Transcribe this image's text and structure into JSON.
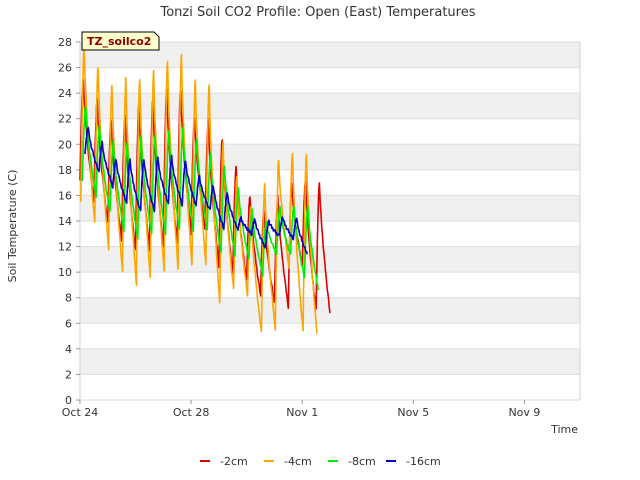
{
  "chart_data": {
    "type": "line",
    "title": "Tonzi Soil CO2 Profile: Open (East) Temperatures",
    "xlabel": "Time",
    "ylabel": "Soil Temperature (C)",
    "ylim": [
      0,
      28
    ],
    "yticks": [
      0,
      2,
      4,
      6,
      8,
      10,
      12,
      14,
      16,
      18,
      20,
      22,
      24,
      26,
      28
    ],
    "xlim": [
      0,
      18
    ],
    "xticks": [
      {
        "label": "Oct 24",
        "day": 0
      },
      {
        "label": "Oct 28",
        "day": 4
      },
      {
        "label": "Nov 1",
        "day": 8
      },
      {
        "label": "Nov 5",
        "day": 12
      },
      {
        "label": "Nov 9",
        "day": 16
      }
    ],
    "badge": "TZ_soilco2",
    "legend_position": "bottom",
    "day_time": [
      0,
      0.5,
      1,
      1.5,
      2,
      2.5,
      3,
      3.5,
      4,
      4.5,
      5,
      5.5,
      6,
      6.5,
      7,
      7.5,
      8,
      8.5,
      9,
      9.5,
      10,
      10.5,
      11,
      11.5,
      12,
      12.5,
      13,
      13.5,
      14,
      14.5,
      15,
      15.5,
      16,
      16.5,
      17,
      17.5
    ],
    "series": [
      {
        "name": "-2cm",
        "color": "#dd0000",
        "min": [
          17.3,
          15.5,
          13.8,
          12.5,
          11.7,
          11.8,
          12.0,
          12.2,
          13.0,
          13.3,
          10.5,
          9.9,
          9.3,
          8.2,
          7.6,
          7.3,
          10.5,
          7.0,
          6.8,
          8.9
        ],
        "max": [
          25.1,
          23.5,
          22.0,
          22.3,
          23.1,
          23.5,
          24.3,
          24.3,
          22.1,
          21.9,
          20.4,
          18.2,
          16.0,
          14.8,
          15.9,
          17.0,
          17.2,
          17.1
        ]
      },
      {
        "name": "-4cm",
        "color": "#ffa500",
        "min": [
          15.5,
          13.8,
          11.8,
          10.0,
          9.1,
          9.6,
          10.0,
          10.3,
          10.5,
          10.7,
          7.6,
          8.6,
          8.2,
          5.3,
          5.6,
          10.3,
          5.3,
          5.2,
          5.7,
          6.9
        ],
        "max": [
          27.8,
          26.1,
          24.6,
          25.1,
          25.1,
          25.7,
          26.6,
          27.0,
          24.9,
          24.7,
          20.1,
          17.6,
          15.1,
          16.8,
          18.8,
          19.2,
          19.3
        ]
      },
      {
        "name": "-8cm",
        "color": "#00ee00",
        "min": [
          17.0,
          15.9,
          14.7,
          13.3,
          12.6,
          12.9,
          13.0,
          13.3,
          13.3,
          13.3,
          11.4,
          11.3,
          11.0,
          9.8,
          11.4,
          11.3,
          9.6,
          8.6,
          8.7,
          9.9
        ],
        "max": [
          23.1,
          21.5,
          20.2,
          20.2,
          20.6,
          20.8,
          21.1,
          21.2,
          20.4,
          19.2,
          18.4,
          16.6,
          14.8,
          14.0,
          15.1,
          15.2,
          15.2
        ]
      },
      {
        "name": "-16cm",
        "color": "#0000cc",
        "min": [
          19.3,
          17.8,
          16.7,
          15.4,
          14.7,
          14.8,
          15.3,
          15.3,
          15.2,
          14.8,
          13.4,
          13.3,
          13.0,
          11.9,
          12.8,
          12.6,
          11.4,
          10.9,
          10.3,
          11.8
        ],
        "max": [
          21.3,
          20.1,
          18.8,
          18.8,
          18.9,
          19.0,
          19.0,
          18.7,
          17.5,
          16.8,
          16.2,
          14.2,
          14.1,
          14.0,
          14.3,
          14.2
        ]
      }
    ]
  }
}
